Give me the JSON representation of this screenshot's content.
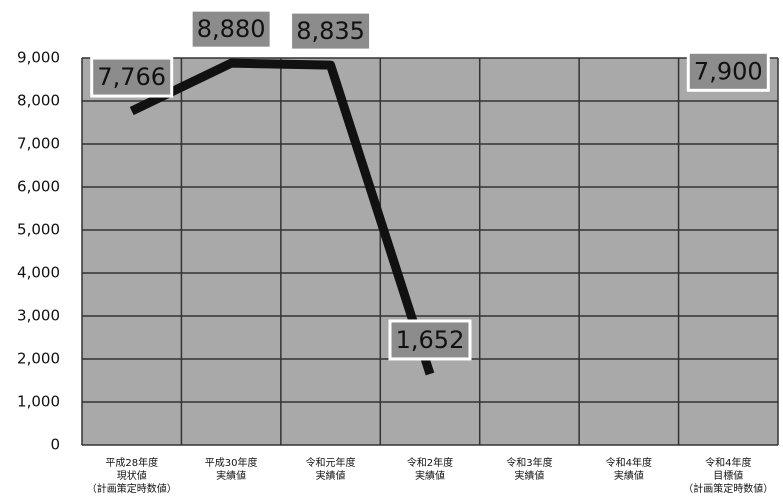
{
  "chart_data": {
    "type": "line",
    "categories": [
      "平成28年度\n現状値\n（計画策定時数値）",
      "平成30年度\n実績値",
      "令和元年度\n実績値",
      "令和2年度\n実績値",
      "令和3年度\n実績値",
      "令和4年度\n実績値",
      "令和4年度\n目標値\n（計画策定時数値）"
    ],
    "series": [
      {
        "color": "#111111",
        "values": [
          7766,
          8880,
          8835,
          1652,
          null,
          null,
          7900
        ],
        "value_labels": [
          "7,766",
          "8,880",
          "8,835",
          "1,652",
          null,
          null,
          "7,900"
        ]
      }
    ],
    "ylim": [
      0,
      9000
    ],
    "yticks": [
      0,
      {
        "value": 1000,
        "label": "1,000"
      },
      {
        "value": 2000,
        "label": "2,000"
      },
      {
        "value": 3000,
        "label": "3,000"
      },
      {
        "value": 4000,
        "label": "4,000"
      },
      {
        "value": 5000,
        "label": "5,000"
      },
      {
        "value": 6000,
        "label": "6,000"
      },
      {
        "value": 7000,
        "label": "7,000"
      },
      {
        "value": 8000,
        "label": "8,000"
      },
      {
        "value": 9000,
        "label": "9,000"
      }
    ],
    "grid": true
  }
}
